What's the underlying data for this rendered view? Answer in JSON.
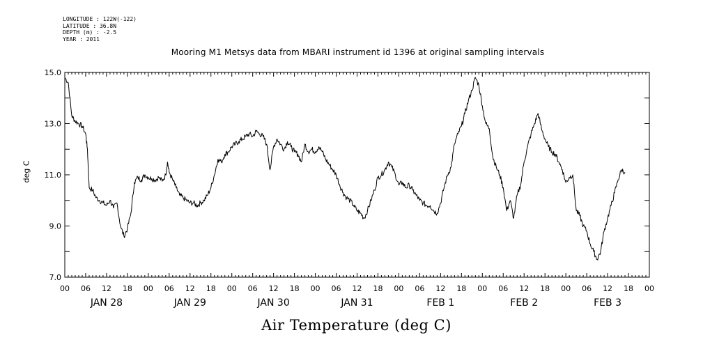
{
  "header": {
    "longitude": "LONGITUDE : 122W(-122)",
    "latitude": "LATITUDE : 36.8N",
    "depth": "DEPTH (m) : -2.5",
    "year": "YEAR : 2011"
  },
  "chart_data": {
    "type": "line",
    "title": "Mooring M1 Metsys data from MBARI instrument id 1396 at original sampling intervals",
    "xlabel": "Air Temperature (deg C)",
    "ylabel": "deg C",
    "ylim": [
      7.0,
      15.0
    ],
    "yticks": [
      "7.0",
      "9.0",
      "11.0",
      "13.0",
      "15.0"
    ],
    "x_unit": "hours since 2011-01-28 00:00",
    "xlim": [
      0,
      168
    ],
    "hour_ticks": [
      "00",
      "06",
      "12",
      "18",
      "00",
      "06",
      "12",
      "18",
      "00",
      "06",
      "12",
      "18",
      "00",
      "06",
      "12",
      "18",
      "00",
      "06",
      "12",
      "18",
      "00",
      "06",
      "12",
      "18",
      "00",
      "06",
      "12",
      "18",
      "00"
    ],
    "day_labels": [
      "JAN 28",
      "JAN 29",
      "JAN 30",
      "JAN 31",
      "FEB  1",
      "FEB  2",
      "FEB  3"
    ],
    "grid": false,
    "series": [
      {
        "name": "Air Temperature",
        "color": "#000000",
        "points": [
          [
            0,
            14.8
          ],
          [
            1,
            14.6
          ],
          [
            2,
            13.3
          ],
          [
            3,
            13.1
          ],
          [
            4,
            13.0
          ],
          [
            5,
            12.9
          ],
          [
            6,
            12.6
          ],
          [
            6.5,
            12.0
          ],
          [
            7,
            10.5
          ],
          [
            8,
            10.4
          ],
          [
            9,
            10.1
          ],
          [
            10,
            10.0
          ],
          [
            11,
            9.9
          ],
          [
            12,
            9.8
          ],
          [
            13,
            10.0
          ],
          [
            14,
            9.7
          ],
          [
            15,
            9.9
          ],
          [
            16,
            9.0
          ],
          [
            17,
            8.6
          ],
          [
            18,
            8.9
          ],
          [
            19,
            9.5
          ],
          [
            20,
            10.7
          ],
          [
            21,
            10.9
          ],
          [
            22,
            10.8
          ],
          [
            23,
            11.0
          ],
          [
            24,
            10.9
          ],
          [
            25,
            10.85
          ],
          [
            26,
            10.8
          ],
          [
            27,
            10.9
          ],
          [
            28,
            10.75
          ],
          [
            29,
            11.0
          ],
          [
            29.5,
            11.5
          ],
          [
            30,
            11.1
          ],
          [
            31,
            10.8
          ],
          [
            32,
            10.5
          ],
          [
            33,
            10.2
          ],
          [
            34,
            10.1
          ],
          [
            35,
            10.0
          ],
          [
            36,
            9.9
          ],
          [
            37,
            9.9
          ],
          [
            38,
            9.8
          ],
          [
            39,
            9.9
          ],
          [
            40,
            10.0
          ],
          [
            41,
            10.2
          ],
          [
            42,
            10.5
          ],
          [
            43,
            11.0
          ],
          [
            44,
            11.6
          ],
          [
            45,
            11.5
          ],
          [
            46,
            11.8
          ],
          [
            47,
            11.9
          ],
          [
            48,
            12.1
          ],
          [
            49,
            12.2
          ],
          [
            50,
            12.3
          ],
          [
            51,
            12.4
          ],
          [
            52,
            12.5
          ],
          [
            53,
            12.6
          ],
          [
            54,
            12.5
          ],
          [
            55,
            12.7
          ],
          [
            56,
            12.6
          ],
          [
            57,
            12.5
          ],
          [
            58,
            12.2
          ],
          [
            59,
            11.2
          ],
          [
            60,
            12.1
          ],
          [
            61,
            12.4
          ],
          [
            62,
            12.2
          ],
          [
            63,
            12.0
          ],
          [
            64,
            12.3
          ],
          [
            65,
            12.1
          ],
          [
            66,
            11.9
          ],
          [
            67,
            11.8
          ],
          [
            68,
            11.5
          ],
          [
            69,
            12.2
          ],
          [
            70,
            11.9
          ],
          [
            71,
            12.0
          ],
          [
            72,
            11.9
          ],
          [
            73,
            12.1
          ],
          [
            74,
            11.9
          ],
          [
            75,
            11.6
          ],
          [
            76,
            11.4
          ],
          [
            77,
            11.2
          ],
          [
            78,
            11.0
          ],
          [
            79,
            10.6
          ],
          [
            80,
            10.3
          ],
          [
            81,
            10.1
          ],
          [
            82,
            10.0
          ],
          [
            83,
            9.8
          ],
          [
            84,
            9.6
          ],
          [
            85,
            9.5
          ],
          [
            86,
            9.3
          ],
          [
            87,
            9.6
          ],
          [
            88,
            10.0
          ],
          [
            89,
            10.4
          ],
          [
            90,
            10.9
          ],
          [
            91,
            11.0
          ],
          [
            92,
            11.2
          ],
          [
            93,
            11.5
          ],
          [
            94,
            11.3
          ],
          [
            95,
            11.0
          ],
          [
            96,
            10.6
          ],
          [
            97,
            10.7
          ],
          [
            98,
            10.5
          ],
          [
            99,
            10.6
          ],
          [
            100,
            10.4
          ],
          [
            101,
            10.2
          ],
          [
            102,
            10.0
          ],
          [
            103,
            9.9
          ],
          [
            104,
            9.8
          ],
          [
            105,
            9.8
          ],
          [
            106,
            9.6
          ],
          [
            107,
            9.5
          ],
          [
            108,
            9.9
          ],
          [
            109,
            10.5
          ],
          [
            110,
            11.0
          ],
          [
            111,
            11.3
          ],
          [
            112,
            12.2
          ],
          [
            113,
            12.6
          ],
          [
            114,
            12.9
          ],
          [
            115,
            13.4
          ],
          [
            116,
            13.9
          ],
          [
            117,
            14.3
          ],
          [
            118,
            14.8
          ],
          [
            119,
            14.5
          ],
          [
            120,
            13.7
          ],
          [
            121,
            13.0
          ],
          [
            122,
            12.8
          ],
          [
            123,
            11.7
          ],
          [
            124,
            11.3
          ],
          [
            125,
            11.0
          ],
          [
            126,
            10.5
          ],
          [
            127,
            9.6
          ],
          [
            128,
            10.0
          ],
          [
            129,
            9.3
          ],
          [
            130,
            10.2
          ],
          [
            131,
            10.6
          ],
          [
            132,
            11.5
          ],
          [
            133,
            12.1
          ],
          [
            134,
            12.6
          ],
          [
            135,
            13.0
          ],
          [
            136,
            13.4
          ],
          [
            137,
            12.8
          ],
          [
            138,
            12.4
          ],
          [
            139,
            12.1
          ],
          [
            140,
            11.9
          ],
          [
            141,
            11.8
          ],
          [
            142,
            11.5
          ],
          [
            143,
            11.2
          ],
          [
            144,
            10.7
          ],
          [
            145,
            10.9
          ],
          [
            146,
            11.0
          ],
          [
            147,
            9.6
          ],
          [
            148,
            9.4
          ],
          [
            149,
            9.0
          ],
          [
            150,
            8.8
          ],
          [
            151,
            8.3
          ],
          [
            152,
            8.0
          ],
          [
            153,
            7.7
          ],
          [
            154,
            8.0
          ],
          [
            155,
            8.8
          ],
          [
            156,
            9.3
          ],
          [
            157,
            9.8
          ],
          [
            158,
            10.3
          ],
          [
            159,
            10.8
          ],
          [
            160,
            11.2
          ],
          [
            161,
            11.1
          ]
        ]
      }
    ]
  }
}
